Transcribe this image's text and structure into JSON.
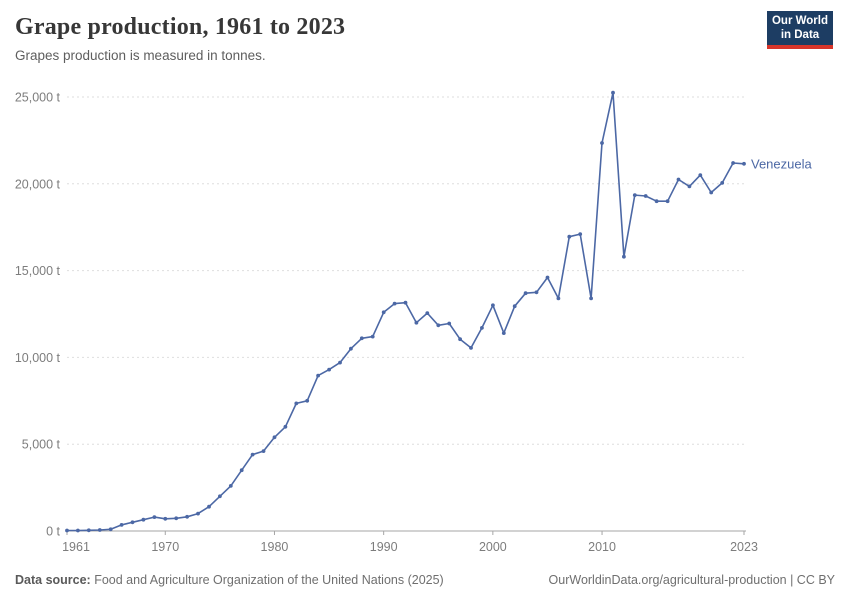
{
  "header": {
    "title": "Grape production, 1961 to 2023",
    "subtitle": "Grapes production is measured in tonnes."
  },
  "logo": {
    "line1": "Our World",
    "line2": "in Data",
    "bg_color": "#1d3d63",
    "accent_color": "#d8352a"
  },
  "footer": {
    "source_label": "Data source:",
    "source_text": " Food and Agriculture Organization of the United Nations (2025)",
    "attribution": "OurWorldinData.org/agricultural-production | CC BY"
  },
  "chart_data": {
    "type": "line",
    "title": "Grape production, 1961 to 2023",
    "subtitle": "Grapes production is measured in tonnes.",
    "xlabel": "",
    "ylabel": "",
    "unit": "tonnes",
    "xlim": [
      1961,
      2023
    ],
    "ylim": [
      0,
      25000
    ],
    "grid": "horizontal-dashed",
    "legend_position": "end-of-line-label",
    "yticks": [
      {
        "value": 0,
        "label": "0 t"
      },
      {
        "value": 5000,
        "label": "5,000 t"
      },
      {
        "value": 10000,
        "label": "10,000 t"
      },
      {
        "value": 15000,
        "label": "15,000 t"
      },
      {
        "value": 20000,
        "label": "20,000 t"
      },
      {
        "value": 25000,
        "label": "25,000 t"
      }
    ],
    "xticks": [
      {
        "value": 1961,
        "label": "1961"
      },
      {
        "value": 1970,
        "label": "1970"
      },
      {
        "value": 1980,
        "label": "1980"
      },
      {
        "value": 1990,
        "label": "1990"
      },
      {
        "value": 2000,
        "label": "2000"
      },
      {
        "value": 2010,
        "label": "2010"
      },
      {
        "value": 2023,
        "label": "2023"
      }
    ],
    "series": [
      {
        "name": "Venezuela",
        "color": "#4c68a5",
        "x": [
          1961,
          1962,
          1963,
          1964,
          1965,
          1966,
          1967,
          1968,
          1969,
          1970,
          1971,
          1972,
          1973,
          1974,
          1975,
          1976,
          1977,
          1978,
          1979,
          1980,
          1981,
          1982,
          1983,
          1984,
          1985,
          1986,
          1987,
          1988,
          1989,
          1990,
          1991,
          1992,
          1993,
          1994,
          1995,
          1996,
          1997,
          1998,
          1999,
          2000,
          2001,
          2002,
          2003,
          2004,
          2005,
          2006,
          2007,
          2008,
          2009,
          2010,
          2011,
          2012,
          2013,
          2014,
          2015,
          2016,
          2017,
          2018,
          2019,
          2020,
          2021,
          2022,
          2023
        ],
        "values": [
          30,
          30,
          40,
          60,
          100,
          350,
          500,
          650,
          800,
          700,
          730,
          820,
          1000,
          1400,
          2000,
          2600,
          3500,
          4400,
          4600,
          5400,
          6000,
          7350,
          7500,
          8950,
          9300,
          9700,
          10500,
          11100,
          11200,
          12600,
          13100,
          13150,
          12000,
          12550,
          11850,
          11950,
          11050,
          10550,
          11700,
          13000,
          11400,
          12950,
          13700,
          13750,
          14600,
          13400,
          16950,
          17100,
          13400,
          22350,
          25250,
          15800,
          19350,
          19300,
          19000,
          19000,
          20250,
          19850,
          20500,
          19500,
          20050,
          21200,
          21150
        ]
      }
    ]
  }
}
